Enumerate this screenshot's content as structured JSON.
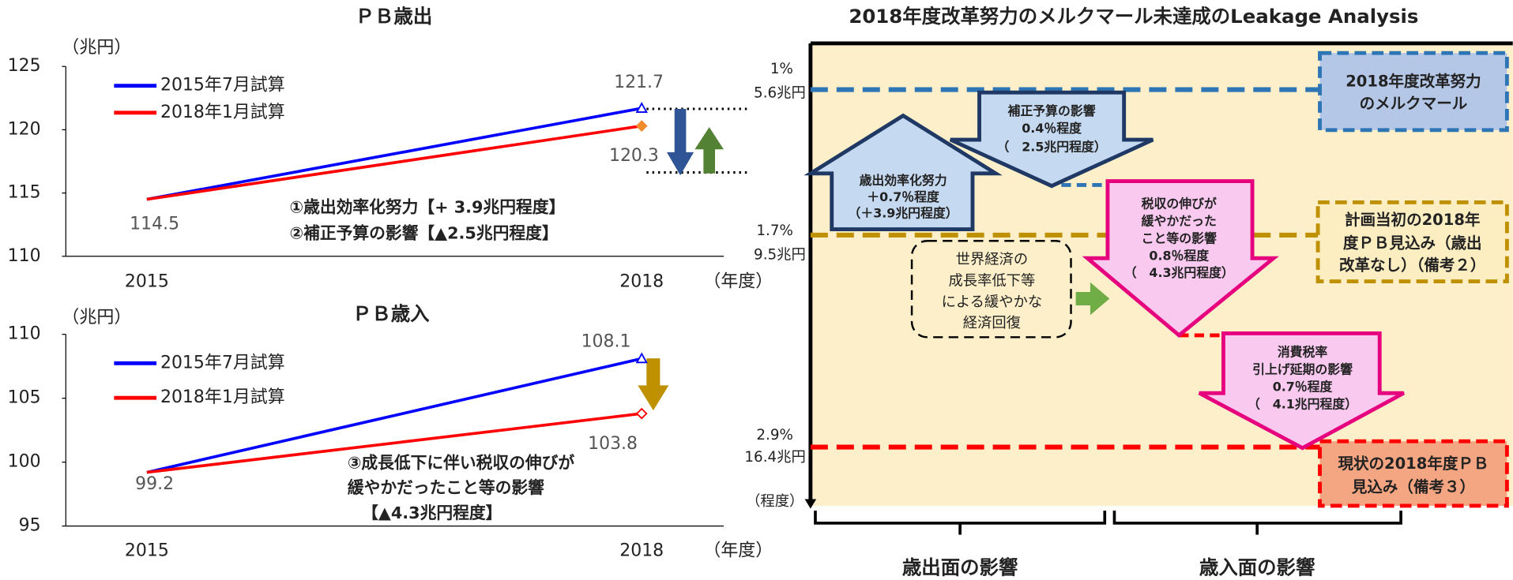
{
  "chart_data": [
    {
      "type": "line",
      "title": "ＰＢ歳出",
      "y_unit": "（兆円）",
      "x_unit": "（年度）",
      "categories": [
        "2015",
        "2018"
      ],
      "series": [
        {
          "name": "2015年7月試算",
          "color": "#0000ff",
          "values": [
            114.5,
            121.7
          ]
        },
        {
          "name": "2018年1月試算",
          "color": "#ff0000",
          "values": [
            114.5,
            120.3
          ]
        }
      ],
      "ylim": [
        110,
        125
      ],
      "yticks": [
        110,
        115,
        120,
        125
      ],
      "annotations": [
        "①歳出効率化努力【+ 3.9兆円程度】",
        "②補正予算の影響【▲2.5兆円程度】"
      ]
    },
    {
      "type": "line",
      "title": "ＰＢ歳入",
      "y_unit": "（兆円）",
      "x_unit": "（年度）",
      "categories": [
        "2015",
        "2018"
      ],
      "series": [
        {
          "name": "2015年7月試算",
          "color": "#0000ff",
          "values": [
            99.2,
            108.1
          ]
        },
        {
          "name": "2018年1月試算",
          "color": "#ff0000",
          "values": [
            99.2,
            103.8
          ]
        }
      ],
      "ylim": [
        95,
        110
      ],
      "yticks": [
        95,
        100,
        105,
        110
      ],
      "annotations": [
        "③成長低下に伴い税収の伸びが",
        "緩やかだったこと等の影響",
        "【▲4.3兆円程度】"
      ]
    }
  ],
  "diagram": {
    "title": "2018年度改革努力のメルクマール未達成のLeakage Analysis",
    "levels": [
      {
        "percent": "1%",
        "amount": "5.6兆円"
      },
      {
        "percent": "1.7%",
        "amount": "9.5兆円"
      },
      {
        "percent": "2.9%",
        "amount": "16.4兆円"
      }
    ],
    "scale_unit": "（程度）",
    "boxes": [
      {
        "lines": [
          "2018年度改革努力",
          "のメルクマール"
        ]
      },
      {
        "lines": [
          "計画当初の2018年",
          "度ＰＢ見込み（歳出",
          "改革なし）（備考２）"
        ]
      },
      {
        "lines": [
          "現状の2018年度ＰＢ",
          "見込み（備考３）"
        ]
      }
    ],
    "arrows": [
      {
        "lines": [
          "歳出効率化努力",
          "＋0.7％程度",
          "（＋3.9兆円程度）"
        ]
      },
      {
        "lines": [
          "補正予算の影響",
          "0.4％程度",
          "（　2.5兆円程度）"
        ]
      },
      {
        "lines": [
          "税収の伸びが",
          "緩やかだった",
          "こと等の影響",
          "0.8％程度",
          "（　4.3兆円程度）"
        ]
      },
      {
        "lines": [
          "消費税率",
          "引上げ延期の影響",
          "0.7％程度",
          "（　4.1兆円程度）"
        ]
      }
    ],
    "note": [
      "世界経済の",
      "成長率低下等",
      "による緩やかな",
      "経済回復"
    ],
    "groups": [
      "歳出面の影響",
      "歳入面の影響"
    ]
  }
}
